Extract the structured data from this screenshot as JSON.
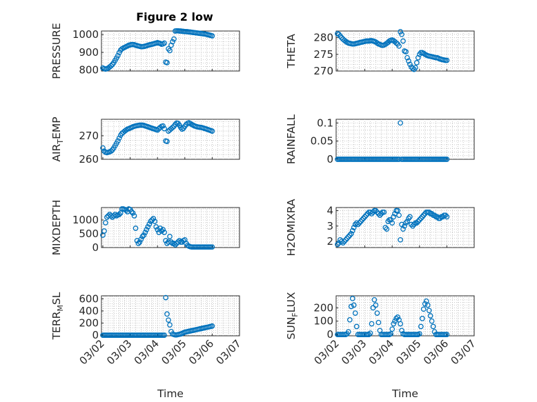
{
  "figure_title": "Figure 2 low",
  "colors": {
    "marker": "#0072BD",
    "axes": "#262626",
    "grid": "#b8b8b8"
  },
  "time_ticks": [
    "03/02",
    "03/03",
    "03/04",
    "03/05",
    "03/06",
    "03/07"
  ],
  "chart_data": [
    {
      "type": "scatter",
      "ylabel": "PRESSURE",
      "ylim": [
        795,
        1020
      ],
      "yticks": [
        800,
        900,
        1000
      ],
      "ytick_labels": [
        "800",
        "900",
        "1000"
      ],
      "xlabel": "",
      "x": [
        0.0,
        0.05,
        0.1,
        0.15,
        0.2,
        0.25,
        0.3,
        0.35,
        0.4,
        0.45,
        0.5,
        0.55,
        0.6,
        0.65,
        0.7,
        0.75,
        0.8,
        0.85,
        0.9,
        0.95,
        1.0,
        1.05,
        1.1,
        1.15,
        1.2,
        1.25,
        1.3,
        1.35,
        1.4,
        1.45,
        1.5,
        1.55,
        1.6,
        1.65,
        1.7,
        1.75,
        1.8,
        1.85,
        1.9,
        1.95,
        2.0,
        2.05,
        2.1,
        2.15,
        2.2,
        2.25,
        2.3,
        2.35,
        2.4,
        2.45,
        2.5,
        2.55,
        2.6,
        2.65,
        2.7,
        2.75,
        2.8,
        2.85,
        2.9,
        2.95,
        3.0,
        3.05,
        3.1,
        3.15,
        3.2,
        3.25,
        3.3,
        3.35,
        3.4,
        3.45,
        3.5,
        3.55,
        3.6,
        3.65,
        3.7,
        3.75,
        3.8,
        3.85,
        3.9,
        3.95,
        4.0
      ],
      "y": [
        812,
        808,
        806,
        808,
        812,
        818,
        824,
        832,
        842,
        855,
        868,
        882,
        898,
        912,
        920,
        924,
        928,
        932,
        936,
        940,
        942,
        944,
        944,
        943,
        940,
        938,
        936,
        934,
        932,
        932,
        933,
        935,
        937,
        940,
        942,
        944,
        946,
        948,
        950,
        952,
        955,
        952,
        950,
        946,
        948,
        952,
        845,
        842,
        920,
        910,
        940,
        960,
        975,
        1020,
        1021,
        1021,
        1020,
        1020,
        1019,
        1018,
        1017,
        1017,
        1016,
        1015,
        1014,
        1013,
        1012,
        1011,
        1010,
        1009,
        1008,
        1007,
        1006,
        1005,
        1004,
        1003,
        1001,
        999,
        997,
        995,
        993
      ]
    },
    {
      "type": "scatter",
      "ylabel": "THETA",
      "ylim": [
        270,
        282
      ],
      "yticks": [
        270,
        275,
        280
      ],
      "ytick_labels": [
        "270",
        "275",
        "280"
      ],
      "xlabel": "",
      "x": [
        0.0,
        0.05,
        0.1,
        0.15,
        0.2,
        0.25,
        0.3,
        0.35,
        0.4,
        0.45,
        0.5,
        0.55,
        0.6,
        0.65,
        0.7,
        0.75,
        0.8,
        0.85,
        0.9,
        0.95,
        1.0,
        1.05,
        1.1,
        1.15,
        1.2,
        1.25,
        1.3,
        1.35,
        1.4,
        1.45,
        1.5,
        1.55,
        1.6,
        1.65,
        1.7,
        1.75,
        1.8,
        1.85,
        1.9,
        1.95,
        2.0,
        2.05,
        2.1,
        2.15,
        2.2,
        2.25,
        2.3,
        2.35,
        2.4,
        2.45,
        2.5,
        2.55,
        2.6,
        2.65,
        2.7,
        2.75,
        2.8,
        2.85,
        2.9,
        2.95,
        3.0,
        3.05,
        3.1,
        3.15,
        3.2,
        3.25,
        3.3,
        3.35,
        3.4,
        3.45,
        3.5,
        3.55,
        3.6,
        3.65,
        3.7,
        3.75,
        3.8,
        3.85,
        3.9,
        3.95,
        4.0
      ],
      "y": [
        281.2,
        281.0,
        280.5,
        280.0,
        279.6,
        279.2,
        278.9,
        278.6,
        278.4,
        278.3,
        278.2,
        278.1,
        278.1,
        278.2,
        278.3,
        278.4,
        278.5,
        278.6,
        278.7,
        278.8,
        278.9,
        279.0,
        279.0,
        279.0,
        279.1,
        279.1,
        279.0,
        278.9,
        278.7,
        278.4,
        278.1,
        278.0,
        277.8,
        277.7,
        277.8,
        278.0,
        278.3,
        278.6,
        279.0,
        279.2,
        279.3,
        279.1,
        278.8,
        278.4,
        278.1,
        277.5,
        281.8,
        281.0,
        279.0,
        276.0,
        275.8,
        274.0,
        273.0,
        272.0,
        271.2,
        270.8,
        270.5,
        271.0,
        272.5,
        274.0,
        275.0,
        275.5,
        275.5,
        275.3,
        275.0,
        274.8,
        274.6,
        274.5,
        274.4,
        274.3,
        274.2,
        274.1,
        274.0,
        274.0,
        273.8,
        273.6,
        273.5,
        273.4,
        273.3,
        273.2,
        273.2
      ]
    },
    {
      "type": "scatter",
      "ylabel": "AIR_TEMP",
      "ylim": [
        260,
        277
      ],
      "yticks": [
        260,
        270
      ],
      "ytick_labels": [
        "260",
        "270"
      ],
      "xlabel": "",
      "x": [
        0.0,
        0.05,
        0.1,
        0.15,
        0.2,
        0.25,
        0.3,
        0.35,
        0.4,
        0.45,
        0.5,
        0.55,
        0.6,
        0.65,
        0.7,
        0.75,
        0.8,
        0.85,
        0.9,
        0.95,
        1.0,
        1.05,
        1.1,
        1.15,
        1.2,
        1.25,
        1.3,
        1.35,
        1.4,
        1.45,
        1.5,
        1.55,
        1.6,
        1.65,
        1.7,
        1.75,
        1.8,
        1.85,
        1.9,
        1.95,
        2.0,
        2.05,
        2.1,
        2.15,
        2.2,
        2.25,
        2.3,
        2.35,
        2.4,
        2.45,
        2.5,
        2.55,
        2.6,
        2.65,
        2.7,
        2.75,
        2.8,
        2.85,
        2.9,
        2.95,
        3.0,
        3.05,
        3.1,
        3.15,
        3.2,
        3.25,
        3.3,
        3.35,
        3.4,
        3.45,
        3.5,
        3.55,
        3.6,
        3.65,
        3.7,
        3.75,
        3.8,
        3.85,
        3.9,
        3.95,
        4.0
      ],
      "y": [
        264.8,
        263.5,
        263.0,
        262.8,
        263.0,
        263.2,
        263.5,
        264.0,
        264.8,
        265.8,
        266.8,
        267.8,
        269.0,
        270.2,
        271.0,
        271.5,
        272.0,
        272.4,
        272.8,
        273.0,
        273.3,
        273.5,
        273.8,
        274.0,
        274.2,
        274.3,
        274.4,
        274.5,
        274.5,
        274.5,
        274.4,
        274.2,
        274.0,
        273.8,
        273.6,
        273.4,
        273.2,
        273.0,
        272.8,
        272.6,
        272.4,
        273.0,
        273.5,
        274.0,
        274.2,
        273.0,
        267.8,
        267.6,
        272.0,
        272.5,
        273.0,
        273.5,
        274.0,
        274.8,
        275.4,
        275.3,
        274.5,
        273.5,
        272.8,
        273.2,
        274.0,
        274.8,
        275.3,
        275.5,
        275.2,
        274.8,
        274.5,
        274.2,
        274.0,
        273.8,
        273.7,
        273.6,
        273.5,
        273.4,
        273.2,
        273.0,
        272.8,
        272.6,
        272.4,
        272.2,
        272.0
      ]
    },
    {
      "type": "scatter",
      "ylabel": "RAINFALL",
      "ylim": [
        0,
        0.11
      ],
      "yticks": [
        0,
        0.05,
        0.1
      ],
      "ytick_labels": [
        "0",
        "0.05",
        "0.1"
      ],
      "xlabel": "",
      "x": [
        0.0,
        0.05,
        0.1,
        0.15,
        0.2,
        0.25,
        0.3,
        0.35,
        0.4,
        0.45,
        0.5,
        0.55,
        0.6,
        0.65,
        0.7,
        0.75,
        0.8,
        0.85,
        0.9,
        0.95,
        1.0,
        1.05,
        1.1,
        1.15,
        1.2,
        1.25,
        1.3,
        1.35,
        1.4,
        1.45,
        1.5,
        1.55,
        1.6,
        1.65,
        1.7,
        1.75,
        1.8,
        1.85,
        1.9,
        1.95,
        2.0,
        2.05,
        2.1,
        2.15,
        2.2,
        2.25,
        2.3,
        2.35,
        2.4,
        2.45,
        2.5,
        2.55,
        2.6,
        2.65,
        2.7,
        2.75,
        2.8,
        2.85,
        2.9,
        2.95,
        3.0,
        3.05,
        3.1,
        3.15,
        3.2,
        3.25,
        3.3,
        3.35,
        3.4,
        3.45,
        3.5,
        3.55,
        3.6,
        3.65,
        3.7,
        3.75,
        3.8,
        3.85,
        3.9,
        3.95,
        4.0
      ],
      "y": [
        0,
        0,
        0,
        0,
        0,
        0,
        0,
        0,
        0,
        0,
        0,
        0,
        0,
        0,
        0,
        0,
        0,
        0,
        0,
        0,
        0,
        0,
        0,
        0,
        0,
        0,
        0,
        0,
        0,
        0,
        0,
        0,
        0,
        0,
        0,
        0,
        0,
        0,
        0,
        0,
        0,
        0,
        0,
        0,
        0,
        0,
        0.1,
        0,
        0,
        0,
        0,
        0,
        0,
        0,
        0,
        0,
        0,
        0,
        0,
        0,
        0,
        0,
        0,
        0,
        0,
        0,
        0,
        0,
        0,
        0,
        0,
        0,
        0,
        0,
        0,
        0,
        0,
        0,
        0,
        0,
        0
      ]
    },
    {
      "type": "scatter",
      "ylabel": "MIXDEPTH",
      "ylim": [
        0,
        1450
      ],
      "yticks": [
        0,
        500,
        1000
      ],
      "ytick_labels": [
        "0",
        "500",
        "1000"
      ],
      "xlabel": "",
      "x": [
        0.0,
        0.05,
        0.1,
        0.15,
        0.2,
        0.25,
        0.3,
        0.35,
        0.4,
        0.45,
        0.5,
        0.55,
        0.6,
        0.65,
        0.7,
        0.75,
        0.8,
        0.85,
        0.9,
        0.95,
        1.0,
        1.05,
        1.1,
        1.15,
        1.2,
        1.25,
        1.3,
        1.35,
        1.4,
        1.45,
        1.5,
        1.55,
        1.6,
        1.65,
        1.7,
        1.75,
        1.8,
        1.85,
        1.9,
        1.95,
        2.0,
        2.05,
        2.1,
        2.15,
        2.2,
        2.25,
        2.3,
        2.35,
        2.4,
        2.45,
        2.5,
        2.55,
        2.6,
        2.65,
        2.7,
        2.75,
        2.8,
        2.85,
        2.9,
        2.95,
        3.0,
        3.05,
        3.1,
        3.15,
        3.2,
        3.25,
        3.3,
        3.35,
        3.4,
        3.45,
        3.5,
        3.55,
        3.6,
        3.65,
        3.7,
        3.75,
        3.8,
        3.85,
        3.9,
        3.95,
        4.0
      ],
      "y": [
        450,
        600,
        900,
        1100,
        1150,
        1200,
        1150,
        1100,
        1150,
        1200,
        1150,
        1180,
        1200,
        1250,
        1400,
        1400,
        1380,
        1350,
        1300,
        1400,
        1380,
        1300,
        1250,
        1150,
        700,
        250,
        150,
        200,
        300,
        400,
        450,
        550,
        650,
        750,
        850,
        950,
        1000,
        1050,
        950,
        750,
        650,
        550,
        700,
        600,
        650,
        550,
        250,
        150,
        200,
        400,
        200,
        150,
        150,
        100,
        150,
        200,
        250,
        200,
        200,
        250,
        280,
        150,
        80,
        50,
        30,
        20,
        20,
        20,
        20,
        20,
        20,
        20,
        20,
        20,
        20,
        20,
        20,
        20,
        20,
        20,
        20
      ]
    },
    {
      "type": "scatter",
      "ylabel": "H2OMIXRA",
      "ylim": [
        1.6,
        4.2
      ],
      "yticks": [
        2,
        3,
        4
      ],
      "ytick_labels": [
        "2",
        "3",
        "4"
      ],
      "xlabel": "",
      "x": [
        0.0,
        0.05,
        0.1,
        0.15,
        0.2,
        0.25,
        0.3,
        0.35,
        0.4,
        0.45,
        0.5,
        0.55,
        0.6,
        0.65,
        0.7,
        0.75,
        0.8,
        0.85,
        0.9,
        0.95,
        1.0,
        1.05,
        1.1,
        1.15,
        1.2,
        1.25,
        1.3,
        1.35,
        1.4,
        1.45,
        1.5,
        1.55,
        1.6,
        1.65,
        1.7,
        1.75,
        1.8,
        1.85,
        1.9,
        1.95,
        2.0,
        2.05,
        2.1,
        2.15,
        2.2,
        2.25,
        2.3,
        2.35,
        2.4,
        2.45,
        2.5,
        2.55,
        2.6,
        2.65,
        2.7,
        2.75,
        2.8,
        2.85,
        2.9,
        2.95,
        3.0,
        3.05,
        3.1,
        3.15,
        3.2,
        3.25,
        3.3,
        3.35,
        3.4,
        3.45,
        3.5,
        3.55,
        3.6,
        3.65,
        3.7,
        3.75,
        3.8,
        3.85,
        3.9,
        3.95,
        4.0
      ],
      "y": [
        1.8,
        1.9,
        2.1,
        2.0,
        1.9,
        2.0,
        2.1,
        2.2,
        2.3,
        2.4,
        2.5,
        2.7,
        2.9,
        3.1,
        3.2,
        3.1,
        3.2,
        3.3,
        3.4,
        3.5,
        3.6,
        3.7,
        3.8,
        3.9,
        3.9,
        3.8,
        3.9,
        4.0,
        4.0,
        3.9,
        3.8,
        3.7,
        3.8,
        3.9,
        3.9,
        2.9,
        2.8,
        3.3,
        3.4,
        3.4,
        3.2,
        3.6,
        3.8,
        4.0,
        4.0,
        3.7,
        2.1,
        3.1,
        2.8,
        3.0,
        3.2,
        3.3,
        3.5,
        3.6,
        3.1,
        3.0,
        3.1,
        3.2,
        3.2,
        3.3,
        3.4,
        3.5,
        3.6,
        3.7,
        3.8,
        3.9,
        3.9,
        3.9,
        3.8,
        3.8,
        3.7,
        3.7,
        3.6,
        3.6,
        3.5,
        3.5,
        3.6,
        3.6,
        3.7,
        3.7,
        3.6
      ]
    },
    {
      "type": "scatter",
      "ylabel": "TERR_MSL",
      "ylim": [
        -10,
        650
      ],
      "yticks": [
        0,
        200,
        400,
        600
      ],
      "ytick_labels": [
        "0",
        "200",
        "400",
        "600"
      ],
      "xlabel": "Time",
      "x": [
        0.0,
        0.05,
        0.1,
        0.15,
        0.2,
        0.25,
        0.3,
        0.35,
        0.4,
        0.45,
        0.5,
        0.55,
        0.6,
        0.65,
        0.7,
        0.75,
        0.8,
        0.85,
        0.9,
        0.95,
        1.0,
        1.05,
        1.1,
        1.15,
        1.2,
        1.25,
        1.3,
        1.35,
        1.4,
        1.45,
        1.5,
        1.55,
        1.6,
        1.65,
        1.7,
        1.75,
        1.8,
        1.85,
        1.9,
        1.95,
        2.0,
        2.05,
        2.1,
        2.15,
        2.2,
        2.25,
        2.3,
        2.35,
        2.4,
        2.45,
        2.5,
        2.55,
        2.6,
        2.65,
        2.7,
        2.75,
        2.8,
        2.85,
        2.9,
        2.95,
        3.0,
        3.05,
        3.1,
        3.15,
        3.2,
        3.25,
        3.3,
        3.35,
        3.4,
        3.45,
        3.5,
        3.55,
        3.6,
        3.65,
        3.7,
        3.75,
        3.8,
        3.85,
        3.9,
        3.95,
        4.0
      ],
      "y": [
        0,
        0,
        0,
        0,
        0,
        0,
        0,
        0,
        0,
        0,
        0,
        0,
        0,
        0,
        0,
        0,
        0,
        0,
        0,
        0,
        0,
        0,
        0,
        0,
        0,
        0,
        0,
        0,
        0,
        0,
        0,
        0,
        0,
        0,
        0,
        0,
        0,
        0,
        0,
        0,
        0,
        0,
        0,
        0,
        0,
        0,
        620,
        350,
        250,
        170,
        60,
        20,
        10,
        5,
        5,
        10,
        15,
        20,
        30,
        40,
        50,
        55,
        60,
        65,
        70,
        75,
        80,
        85,
        90,
        95,
        100,
        105,
        110,
        115,
        120,
        125,
        130,
        135,
        140,
        145,
        150
      ]
    },
    {
      "type": "scatter",
      "ylabel": "SUN_FLUX",
      "ylim": [
        -10,
        290
      ],
      "yticks": [
        0,
        100,
        200
      ],
      "ytick_labels": [
        "0",
        "100",
        "200"
      ],
      "xlabel": "Time",
      "x": [
        0.0,
        0.05,
        0.1,
        0.15,
        0.2,
        0.25,
        0.3,
        0.35,
        0.4,
        0.45,
        0.5,
        0.55,
        0.6,
        0.65,
        0.7,
        0.75,
        0.8,
        0.85,
        0.9,
        0.95,
        1.0,
        1.05,
        1.1,
        1.15,
        1.2,
        1.25,
        1.3,
        1.35,
        1.4,
        1.45,
        1.5,
        1.55,
        1.6,
        1.65,
        1.7,
        1.75,
        1.8,
        1.85,
        1.9,
        1.95,
        2.0,
        2.05,
        2.1,
        2.15,
        2.2,
        2.25,
        2.3,
        2.35,
        2.4,
        2.45,
        2.5,
        2.55,
        2.6,
        2.65,
        2.7,
        2.75,
        2.8,
        2.85,
        2.9,
        2.95,
        3.0,
        3.05,
        3.1,
        3.15,
        3.2,
        3.25,
        3.3,
        3.35,
        3.4,
        3.45,
        3.5,
        3.55,
        3.6,
        3.65,
        3.7,
        3.75,
        3.8,
        3.85,
        3.9,
        3.95,
        4.0
      ],
      "y": [
        0,
        0,
        0,
        0,
        0,
        0,
        0,
        5,
        20,
        110,
        210,
        270,
        220,
        160,
        60,
        0,
        0,
        0,
        0,
        0,
        0,
        0,
        0,
        0,
        10,
        80,
        200,
        260,
        220,
        160,
        90,
        30,
        0,
        0,
        0,
        0,
        0,
        0,
        0,
        5,
        40,
        80,
        100,
        120,
        130,
        110,
        80,
        30,
        5,
        0,
        0,
        0,
        0,
        0,
        0,
        0,
        0,
        0,
        0,
        0,
        5,
        60,
        120,
        190,
        230,
        250,
        220,
        180,
        140,
        100,
        60,
        20,
        0,
        0,
        0,
        0,
        0,
        0,
        0,
        0,
        0
      ]
    }
  ]
}
